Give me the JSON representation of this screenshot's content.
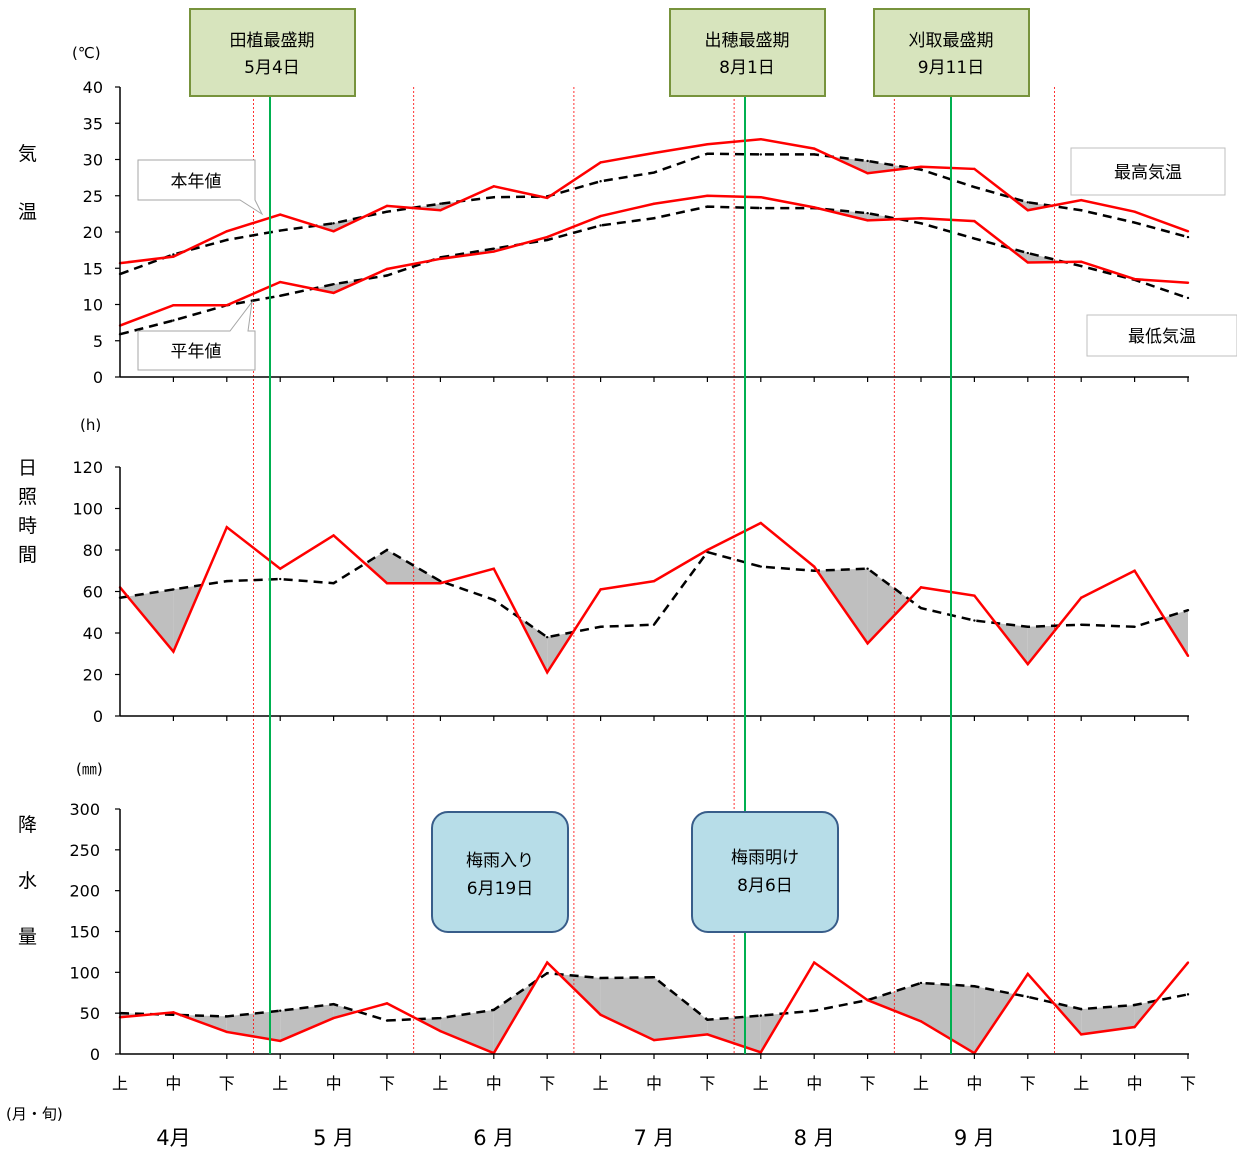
{
  "charts": {
    "temperature": {
      "unit": "(℃)",
      "vlabel": [
        "気",
        "温"
      ],
      "ticks": [
        "0",
        "5",
        "10",
        "15",
        "20",
        "25",
        "30",
        "35",
        "40"
      ],
      "label_this_year": "本年値",
      "label_normal": "平年値",
      "label_max": "最高気温",
      "label_min": "最低気温"
    },
    "sunshine": {
      "unit": "(h)",
      "vlabel": [
        "日",
        "照",
        "時",
        "間"
      ],
      "ticks": [
        "0",
        "20",
        "40",
        "60",
        "80",
        "100",
        "120"
      ]
    },
    "precipitation": {
      "unit": "(㎜)",
      "vlabel": [
        "降",
        "水",
        "量"
      ],
      "ticks": [
        "0",
        "50",
        "100",
        "150",
        "200",
        "250",
        "300"
      ]
    }
  },
  "x_axis": {
    "dekads": [
      "上",
      "中",
      "下",
      "上",
      "中",
      "下",
      "上",
      "中",
      "下",
      "上",
      "中",
      "下",
      "上",
      "中",
      "下",
      "上",
      "中",
      "下",
      "上",
      "中",
      "下"
    ],
    "months": [
      "4月",
      "5 月",
      "6 月",
      "7 月",
      "8 月",
      "9 月",
      "10月"
    ],
    "unit": "(月・旬)"
  },
  "events": {
    "transplant": {
      "title": "田植最盛期",
      "date": "5月4日"
    },
    "heading": {
      "title": "出穂最盛期",
      "date": "8月1日"
    },
    "harvest": {
      "title": "刈取最盛期",
      "date": "9月11日"
    },
    "rainy_start": {
      "title": "梅雨入り",
      "date": "6月19日"
    },
    "rainy_end": {
      "title": "梅雨明け",
      "date": "8月6日"
    }
  },
  "colors": {
    "this_year": "#ff0000",
    "normal": "#000000",
    "shade": "#bfbfbf",
    "growth_line": "#00b050",
    "month_divider": "#ff0000",
    "growth_box_fill": "#d7e4bd",
    "growth_box_border": "#77933c",
    "rain_box_fill": "#b7dde8",
    "rain_box_border": "#385d8a"
  },
  "chart_data": [
    {
      "type": "line",
      "title": "",
      "ylabel": "気温",
      "unit": "℃",
      "ylim": [
        0,
        40
      ],
      "categories": [
        "4月上",
        "4月中",
        "4月下",
        "5月上",
        "5月中",
        "5月下",
        "6月上",
        "6月中",
        "6月下",
        "7月上",
        "7月中",
        "7月下",
        "8月上",
        "8月中",
        "8月下",
        "9月上",
        "9月中",
        "9月下",
        "10月上",
        "10月中",
        "10月下"
      ],
      "series": [
        {
          "name": "最高気温 本年値",
          "values": [
            15.7,
            16.6,
            20.1,
            22.4,
            20.1,
            23.6,
            23.0,
            26.3,
            24.7,
            29.6,
            30.9,
            32.1,
            32.8,
            31.5,
            28.1,
            29.0,
            28.7,
            23.0,
            24.4,
            22.8,
            20.1
          ]
        },
        {
          "name": "最高気温 平年値",
          "values": [
            14.2,
            16.9,
            18.9,
            20.2,
            21.2,
            22.8,
            23.9,
            24.8,
            24.9,
            27.0,
            28.2,
            30.8,
            30.7,
            30.7,
            29.8,
            28.6,
            26.2,
            24.1,
            23.0,
            21.3,
            19.3
          ]
        },
        {
          "name": "最低気温 本年値",
          "values": [
            7.1,
            9.9,
            9.9,
            13.1,
            11.6,
            14.9,
            16.3,
            17.3,
            19.3,
            22.2,
            23.9,
            25.0,
            24.8,
            23.4,
            21.6,
            21.9,
            21.5,
            15.8,
            15.9,
            13.5,
            13.0
          ]
        },
        {
          "name": "最低気温 平年値",
          "values": [
            5.9,
            7.8,
            9.9,
            11.2,
            12.8,
            14.0,
            16.5,
            17.7,
            18.9,
            20.9,
            21.9,
            23.5,
            23.3,
            23.3,
            22.6,
            21.2,
            19.1,
            17.1,
            15.3,
            13.4,
            10.9
          ]
        }
      ]
    },
    {
      "type": "line",
      "title": "",
      "ylabel": "日照時間",
      "unit": "h",
      "ylim": [
        0,
        120
      ],
      "categories": [
        "4月上",
        "4月中",
        "4月下",
        "5月上",
        "5月中",
        "5月下",
        "6月上",
        "6月中",
        "6月下",
        "7月上",
        "7月中",
        "7月下",
        "8月上",
        "8月中",
        "8月下",
        "9月上",
        "9月中",
        "9月下",
        "10月上",
        "10月中",
        "10月下"
      ],
      "series": [
        {
          "name": "本年値",
          "values": [
            62,
            31,
            91,
            71,
            87,
            64,
            64,
            71,
            21,
            61,
            65,
            80,
            93,
            72,
            35,
            62,
            58,
            25,
            57,
            70,
            29
          ]
        },
        {
          "name": "平年値",
          "values": [
            57,
            61,
            65,
            66,
            64,
            80,
            65,
            56,
            38,
            43,
            44,
            79,
            72,
            70,
            71,
            52,
            46,
            43,
            44,
            43,
            51
          ]
        }
      ]
    },
    {
      "type": "line",
      "title": "",
      "ylabel": "降水量",
      "unit": "㎜",
      "ylim": [
        0,
        300
      ],
      "categories": [
        "4月上",
        "4月中",
        "4月下",
        "5月上",
        "5月中",
        "5月下",
        "6月上",
        "6月中",
        "6月下",
        "7月上",
        "7月中",
        "7月下",
        "8月上",
        "8月中",
        "8月下",
        "9月上",
        "9月中",
        "9月下",
        "10月上",
        "10月中",
        "10月下"
      ],
      "series": [
        {
          "name": "本年値",
          "values": [
            45,
            51,
            27,
            16,
            44,
            62,
            28,
            1,
            112,
            48,
            17,
            24,
            2,
            112,
            66,
            40,
            1,
            98,
            24,
            33,
            112
          ]
        },
        {
          "name": "平年値",
          "values": [
            50,
            48,
            46,
            53,
            61,
            41,
            44,
            54,
            99,
            93,
            94,
            42,
            47,
            53,
            66,
            87,
            83,
            70,
            55,
            60,
            73
          ]
        }
      ]
    }
  ]
}
